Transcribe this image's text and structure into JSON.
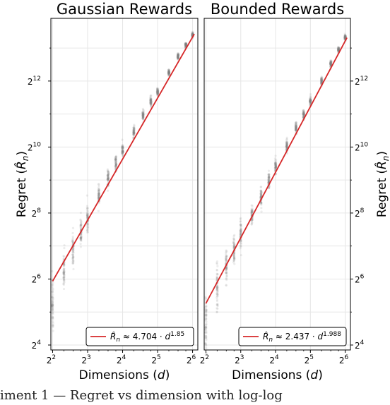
{
  "chart_data": [
    {
      "type": "scatter",
      "title": "Gaussian Rewards",
      "xlabel": "Dimensions (d)",
      "ylabel": "Regret (R̂n)",
      "x_scale": "log2",
      "y_scale": "log2",
      "xlim_log2": [
        1.95,
        6.15
      ],
      "ylim_log2": [
        3.85,
        13.9
      ],
      "x_ticks_log2": [
        2,
        3,
        4,
        5,
        6
      ],
      "y_ticks_log2": [
        4,
        6,
        8,
        10,
        12
      ],
      "grid": true,
      "legend_placement": "bottom-right",
      "legend_label": "R̂n ≈ 4.704 · d^1.85",
      "fit": {
        "coefficient": 4.704,
        "exponent": 1.85,
        "color": "#d62728"
      },
      "point_color": "#808080",
      "point_groups": [
        {
          "d": 4,
          "median_regret": 40,
          "spread": 0.45
        },
        {
          "d": 5,
          "median_regret": 75,
          "spread": 0.3
        },
        {
          "d": 6,
          "median_regret": 120,
          "spread": 0.25
        },
        {
          "d": 7,
          "median_regret": 170,
          "spread": 0.2
        },
        {
          "d": 8,
          "median_regret": 230,
          "spread": 0.18
        },
        {
          "d": 10,
          "median_regret": 380,
          "spread": 0.15
        },
        {
          "d": 12,
          "median_regret": 540,
          "spread": 0.12
        },
        {
          "d": 14,
          "median_regret": 720,
          "spread": 0.12
        },
        {
          "d": 16,
          "median_regret": 950,
          "spread": 0.1
        },
        {
          "d": 20,
          "median_regret": 1400,
          "spread": 0.09
        },
        {
          "d": 24,
          "median_regret": 2000,
          "spread": 0.08
        },
        {
          "d": 28,
          "median_regret": 2650,
          "spread": 0.07
        },
        {
          "d": 32,
          "median_regret": 3200,
          "spread": 0.06
        },
        {
          "d": 40,
          "median_regret": 4900,
          "spread": 0.05
        },
        {
          "d": 48,
          "median_regret": 6900,
          "spread": 0.05
        },
        {
          "d": 56,
          "median_regret": 8700,
          "spread": 0.04
        },
        {
          "d": 64,
          "median_regret": 10800,
          "spread": 0.04
        }
      ]
    },
    {
      "type": "scatter",
      "title": "Bounded Rewards",
      "xlabel": "Dimensions (d)",
      "ylabel": "Regret (R̂n)",
      "x_scale": "log2",
      "y_scale": "log2",
      "xlim_log2": [
        1.95,
        6.15
      ],
      "ylim_log2": [
        3.85,
        13.9
      ],
      "x_ticks_log2": [
        2,
        3,
        4,
        5,
        6
      ],
      "y_ticks_log2": [
        4,
        6,
        8,
        10,
        12
      ],
      "grid": true,
      "legend_placement": "bottom-right",
      "legend_label": "R̂n ≈ 2.437 · d^1.988",
      "fit": {
        "coefficient": 2.437,
        "exponent": 1.988,
        "color": "#d62728"
      },
      "point_color": "#808080",
      "point_groups": [
        {
          "d": 4,
          "median_regret": 24,
          "spread": 0.45
        },
        {
          "d": 5,
          "median_regret": 55,
          "spread": 0.35
        },
        {
          "d": 6,
          "median_regret": 85,
          "spread": 0.25
        },
        {
          "d": 7,
          "median_regret": 115,
          "spread": 0.22
        },
        {
          "d": 8,
          "median_regret": 160,
          "spread": 0.2
        },
        {
          "d": 10,
          "median_regret": 250,
          "spread": 0.15
        },
        {
          "d": 12,
          "median_regret": 360,
          "spread": 0.12
        },
        {
          "d": 14,
          "median_regret": 500,
          "spread": 0.12
        },
        {
          "d": 16,
          "median_regret": 680,
          "spread": 0.1
        },
        {
          "d": 20,
          "median_regret": 1050,
          "spread": 0.09
        },
        {
          "d": 24,
          "median_regret": 1550,
          "spread": 0.08
        },
        {
          "d": 28,
          "median_regret": 2050,
          "spread": 0.07
        },
        {
          "d": 32,
          "median_regret": 2700,
          "spread": 0.06
        },
        {
          "d": 40,
          "median_regret": 4100,
          "spread": 0.05
        },
        {
          "d": 48,
          "median_regret": 5900,
          "spread": 0.05
        },
        {
          "d": 56,
          "median_regret": 7900,
          "spread": 0.04
        },
        {
          "d": 64,
          "median_regret": 10200,
          "spread": 0.04
        }
      ]
    }
  ],
  "caption_text": "iment 1 — Regret vs dimension with log-log"
}
